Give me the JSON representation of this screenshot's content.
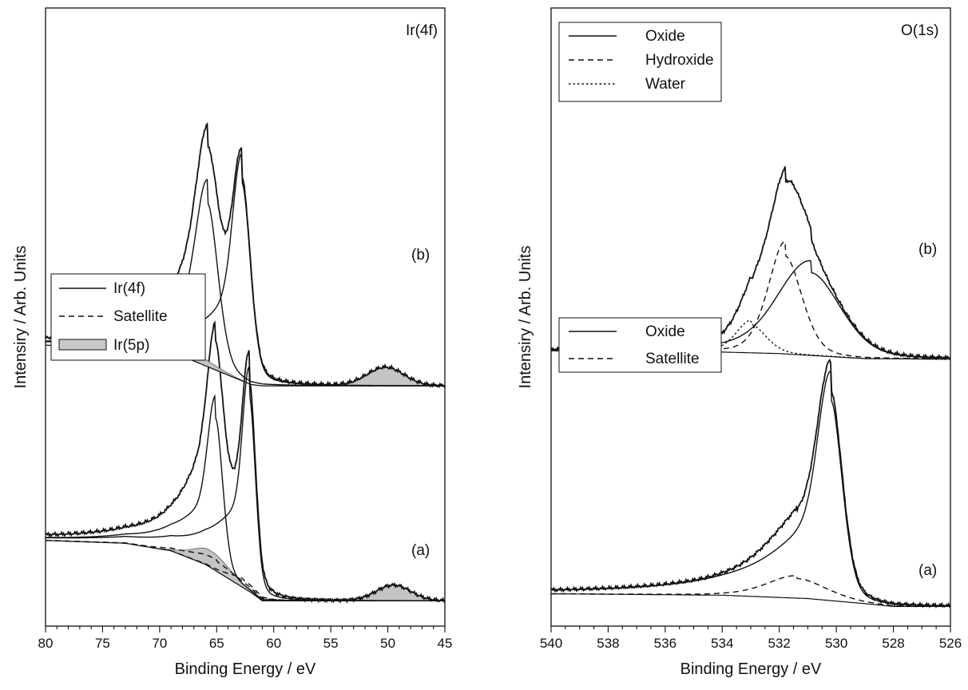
{
  "figure": {
    "ylabel": "Intensiry / Arb. Units"
  },
  "chart_data": [
    {
      "type": "line",
      "panel": "left",
      "title": "Ir(4f)",
      "xlabel": "Binding Energy / eV",
      "ylabel": "Intensiry / Arb. Units",
      "xlim": [
        80,
        45
      ],
      "ylim": [
        0,
        2.2
      ],
      "x_reversed": true,
      "x_ticks": [
        80,
        75,
        70,
        65,
        60,
        55,
        50,
        45
      ],
      "x_minor_step": 1,
      "legend": {
        "placement": "center-left",
        "entries": [
          {
            "label": "Ir(4f)",
            "style": "solid"
          },
          {
            "label": "Satellite",
            "style": "dashed"
          },
          {
            "label": "Ir(5p)",
            "style": "filled",
            "fill": "#c8c8c8"
          }
        ]
      },
      "spectra": [
        {
          "label": "(a)",
          "offset": 0.09,
          "background": [
            [
              80,
              0.215
            ],
            [
              73,
              0.205
            ],
            [
              69,
              0.178
            ],
            [
              66,
              0.13
            ],
            [
              64,
              0.08
            ],
            [
              62,
              0.03
            ],
            [
              61,
              0.0
            ],
            [
              45,
              0.0
            ]
          ],
          "components": [
            {
              "style": "solid",
              "center": 65.1,
              "amplitude": 0.7,
              "width": 0.65,
              "tail_low": 0.7,
              "tail_high": 3.2
            },
            {
              "style": "solid",
              "center": 62.15,
              "amplitude": 0.9,
              "width": 0.55,
              "tail_low": 0.7,
              "tail_high": 3.2
            },
            {
              "style": "dashed",
              "center": 65.0,
              "amplitude": 0.045,
              "width": 2.4,
              "tail_low": 2.4,
              "tail_high": 2.4
            },
            {
              "style": "dashed",
              "center": 62.6,
              "amplitude": 0.035,
              "width": 1.4,
              "tail_low": 1.4,
              "tail_high": 1.4
            }
          ],
          "fill_areas": [
            {
              "center": 65.5,
              "amplitude": 0.06,
              "width": 1.6
            },
            {
              "center": 49.5,
              "amplitude": 0.055,
              "width": 1.5
            }
          ]
        },
        {
          "label": "(b)",
          "offset": 1.0,
          "background": [
            [
              80,
              0.0
            ],
            [
              73,
              -0.012
            ],
            [
              68,
              -0.04
            ],
            [
              65,
              -0.09
            ],
            [
              62,
              -0.14
            ],
            [
              61,
              -0.145
            ],
            [
              45,
              -0.145
            ]
          ],
          "components": [
            {
              "style": "solid",
              "center": 65.8,
              "amplitude": 0.75,
              "width": 0.95,
              "tail_low": 1.0,
              "tail_high": 3.5
            },
            {
              "style": "solid",
              "center": 62.8,
              "amplitude": 0.91,
              "width": 0.75,
              "tail_low": 1.0,
              "tail_high": 3.5
            }
          ],
          "fill_areas": [
            {
              "center": 68.0,
              "amplitude": 0.035,
              "width": 2.2
            },
            {
              "center": 50.2,
              "amplitude": 0.065,
              "width": 1.6
            }
          ]
        }
      ]
    },
    {
      "type": "line",
      "panel": "right",
      "title": "O(1s)",
      "xlabel": "Binding Energy / eV",
      "ylabel": "Intensiry / Arb. Units",
      "xlim": [
        540,
        526
      ],
      "ylim": [
        0,
        2.2
      ],
      "x_reversed": true,
      "x_ticks": [
        540,
        538,
        536,
        534,
        532,
        530,
        528,
        526
      ],
      "x_minor_step": 0.5,
      "legends": [
        {
          "placement": "top-left",
          "entries": [
            {
              "label": "Oxide",
              "style": "solid"
            },
            {
              "label": "Hydroxide",
              "style": "dashed"
            },
            {
              "label": "Water",
              "style": "dotted"
            }
          ]
        },
        {
          "placement": "center-left",
          "entries": [
            {
              "label": "Oxide",
              "style": "solid"
            },
            {
              "label": "Satellite",
              "style": "dashed"
            }
          ]
        }
      ],
      "spectra": [
        {
          "label": "(a)",
          "offset": 0.07,
          "background": [
            [
              540,
              0.045
            ],
            [
              534,
              0.04
            ],
            [
              531,
              0.028
            ],
            [
              529,
              0.01
            ],
            [
              528,
              0.0
            ],
            [
              526,
              0.0
            ]
          ],
          "components": [
            {
              "style": "solid",
              "center": 530.2,
              "amplitude": 0.92,
              "width": 0.42,
              "tail_low": 0.45,
              "tail_high": 2.1
            },
            {
              "style": "dashed",
              "center": 531.4,
              "amplitude": 0.09,
              "width": 1.1,
              "tail_low": 1.1,
              "tail_high": 1.1
            }
          ]
        },
        {
          "label": "(b)",
          "offset": 0.97,
          "background": [
            [
              540,
              0.01
            ],
            [
              535,
              0.008
            ],
            [
              532,
              0.0
            ],
            [
              529,
              -0.018
            ],
            [
              526,
              -0.02
            ]
          ],
          "components": [
            {
              "style": "solid",
              "center": 530.9,
              "amplitude": 0.38,
              "width": 1.1,
              "tail_low": 1.1,
              "tail_high": 1.7
            },
            {
              "style": "dashed",
              "center": 531.8,
              "amplitude": 0.45,
              "width": 0.62,
              "tail_low": 0.62,
              "tail_high": 0.62
            },
            {
              "style": "dotted",
              "center": 533.0,
              "amplitude": 0.13,
              "width": 0.55,
              "tail_low": 0.55,
              "tail_high": 0.55
            }
          ]
        }
      ]
    }
  ]
}
